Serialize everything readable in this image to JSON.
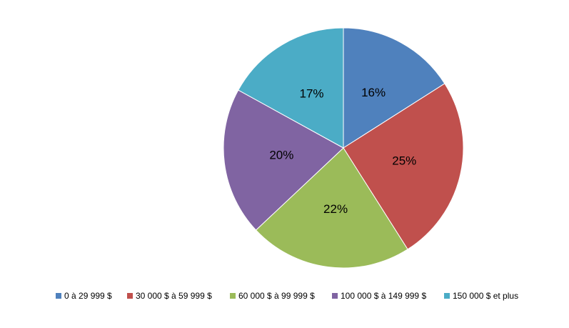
{
  "chart_data": {
    "type": "pie",
    "categories": [
      "0 à 29 999 $",
      "30 000 $ à 59 999 $",
      "60 000 $ à 99 999 $",
      "100 000 $ à 149 999 $",
      "150 000 $ et plus"
    ],
    "values": [
      16,
      25,
      22,
      20,
      17
    ],
    "value_labels": [
      "16%",
      "25%",
      "22%",
      "20%",
      "17%"
    ],
    "colors": [
      "#4f81bd",
      "#c0504d",
      "#9bbb59",
      "#8064a2",
      "#4bacc6"
    ],
    "legend": "bottom"
  }
}
